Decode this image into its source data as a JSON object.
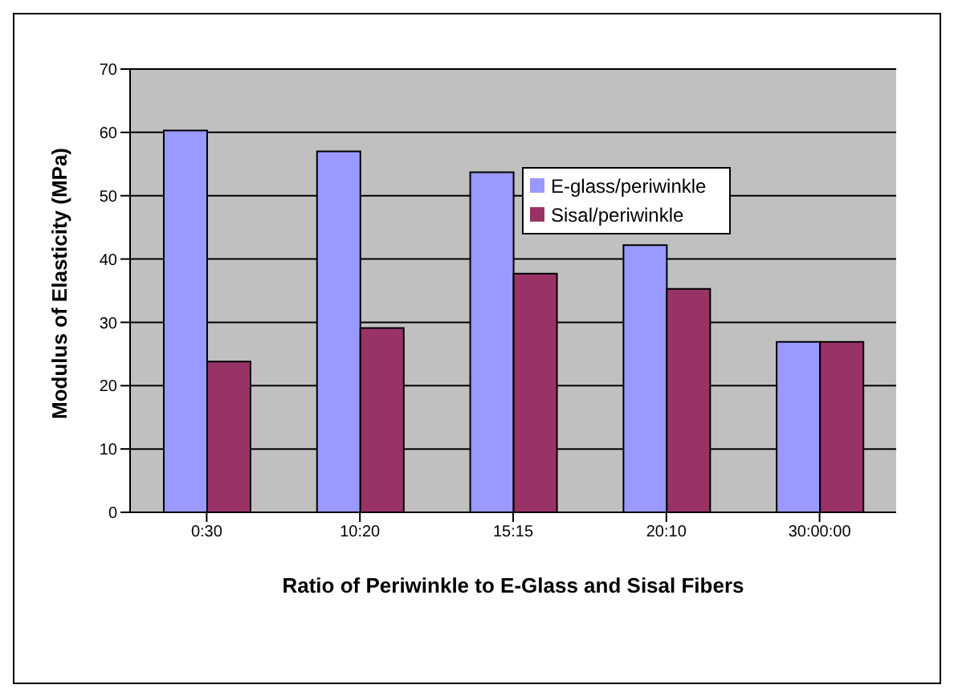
{
  "chart_data": {
    "type": "bar",
    "xlabel": "Ratio of Periwinkle to E-Glass and Sisal Fibers",
    "ylabel": "Modulus of Elasticity (MPa)",
    "categories": [
      "0:30",
      "10:20",
      "15:15",
      "20:10",
      "30:00:00"
    ],
    "series": [
      {
        "name": "E-glass/periwinkle",
        "color": "#9999ff",
        "values": [
          60.3,
          57.0,
          53.7,
          42.2,
          26.9
        ]
      },
      {
        "name": "Sisal/periwinkle",
        "color": "#993366",
        "values": [
          23.8,
          29.1,
          37.7,
          35.3,
          26.9
        ]
      }
    ],
    "ylim": [
      0,
      70
    ],
    "yticks": [
      0,
      10,
      20,
      30,
      40,
      50,
      60,
      70
    ],
    "grid": "y",
    "legend": "top right"
  }
}
